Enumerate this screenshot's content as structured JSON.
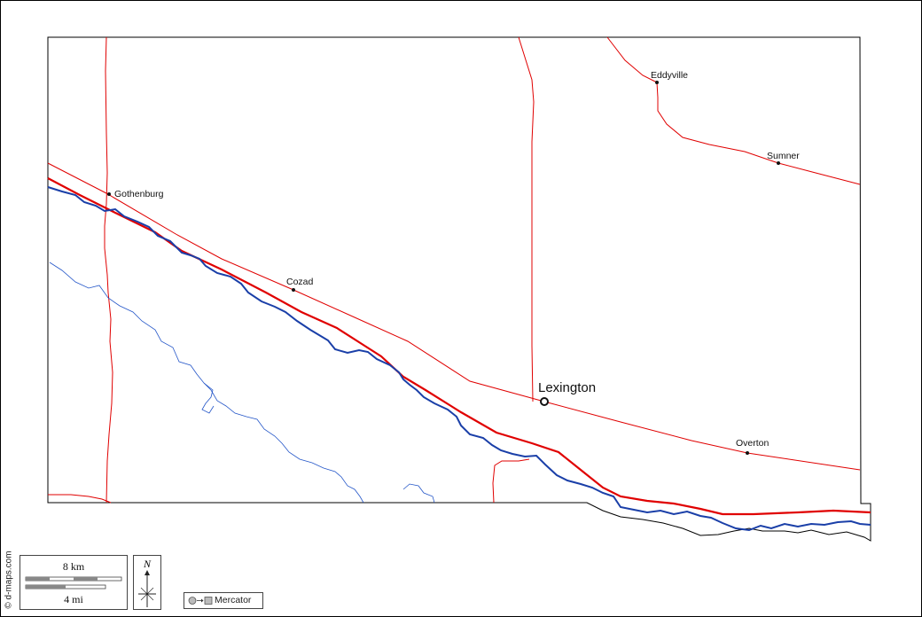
{
  "map": {
    "places": [
      {
        "name": "Eddyville"
      },
      {
        "name": "Sumner"
      },
      {
        "name": "Gothenburg"
      },
      {
        "name": "Cozad"
      },
      {
        "name": "Lexington"
      },
      {
        "name": "Overton"
      }
    ],
    "colors": {
      "county_border": "#000000",
      "roads": "#e00000",
      "main_road": "#e00000",
      "rivers": "#1a3fa8",
      "streams": "#2456c8"
    }
  },
  "credit": "© d-maps.com",
  "scale": {
    "km_label": "8 km",
    "mi_label": "4 mi"
  },
  "compass": {
    "north_label": "N"
  },
  "projection": {
    "label": "Mercator"
  }
}
